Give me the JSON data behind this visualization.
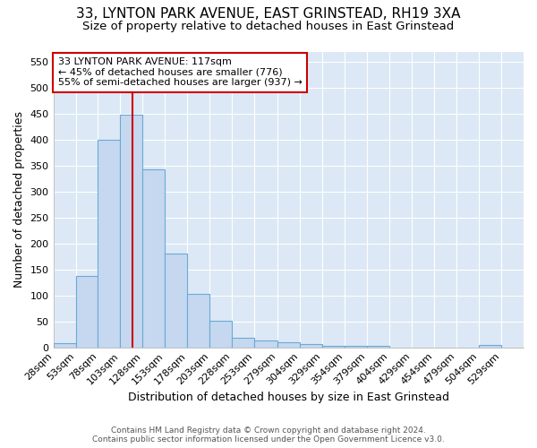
{
  "title": "33, LYNTON PARK AVENUE, EAST GRINSTEAD, RH19 3XA",
  "subtitle": "Size of property relative to detached houses in East Grinstead",
  "xlabel": "Distribution of detached houses by size in East Grinstead",
  "ylabel": "Number of detached properties",
  "bin_labels": [
    "28sqm",
    "53sqm",
    "78sqm",
    "103sqm",
    "128sqm",
    "153sqm",
    "178sqm",
    "203sqm",
    "228sqm",
    "253sqm",
    "279sqm",
    "304sqm",
    "329sqm",
    "354sqm",
    "379sqm",
    "404sqm",
    "429sqm",
    "454sqm",
    "479sqm",
    "504sqm",
    "529sqm"
  ],
  "bin_edges": [
    28,
    53,
    78,
    103,
    128,
    153,
    178,
    203,
    228,
    253,
    279,
    304,
    329,
    354,
    379,
    404,
    429,
    454,
    479,
    504,
    529,
    554
  ],
  "bar_heights": [
    8,
    138,
    400,
    448,
    343,
    180,
    103,
    51,
    18,
    13,
    9,
    7,
    3,
    3,
    3,
    0,
    0,
    0,
    0,
    4,
    0
  ],
  "bar_color": "#c5d8f0",
  "bar_edge_color": "#6aaad4",
  "vline_x": 117,
  "vline_color": "#cc0000",
  "ylim": [
    0,
    570
  ],
  "yticks": [
    0,
    50,
    100,
    150,
    200,
    250,
    300,
    350,
    400,
    450,
    500,
    550
  ],
  "annotation_line1": "33 LYNTON PARK AVENUE: 117sqm",
  "annotation_line2": "← 45% of detached houses are smaller (776)",
  "annotation_line3": "55% of semi-detached houses are larger (937) →",
  "annotation_box_color": "#ffffff",
  "annotation_box_edge_color": "#cc0000",
  "footer_line1": "Contains HM Land Registry data © Crown copyright and database right 2024.",
  "footer_line2": "Contains public sector information licensed under the Open Government Licence v3.0.",
  "background_color": "#dce8f5",
  "grid_color": "#ffffff",
  "title_fontsize": 11,
  "subtitle_fontsize": 9.5,
  "xlabel_fontsize": 9,
  "ylabel_fontsize": 9,
  "tick_fontsize": 8,
  "annotation_fontsize": 8,
  "footer_fontsize": 6.5
}
